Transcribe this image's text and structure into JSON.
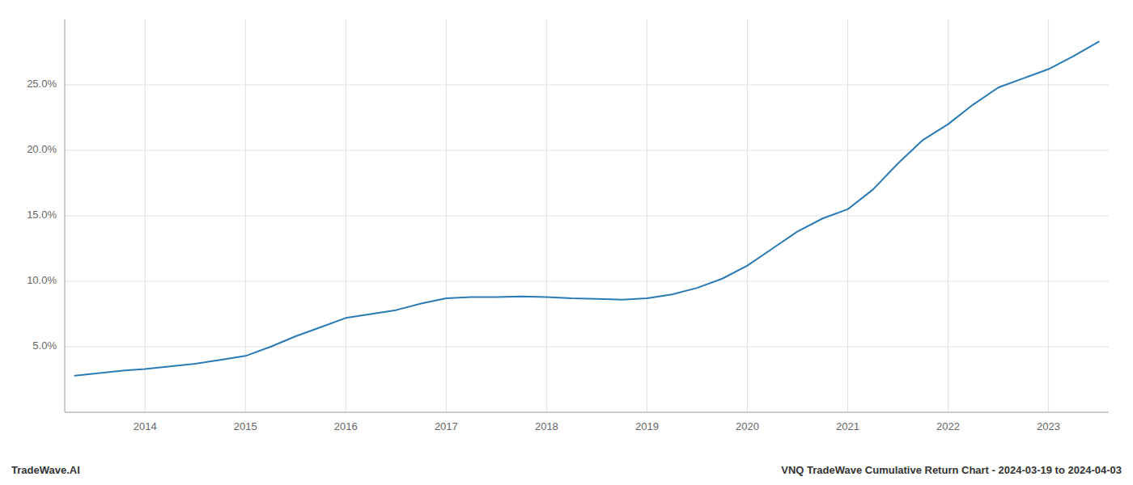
{
  "chart_data": {
    "type": "line",
    "title": "VNQ TradeWave Cumulative Return Chart - 2024-03-19 to 2024-04-03",
    "annotations": [
      "TradeWave.AI"
    ],
    "color": "#2a7ab5",
    "grid": true,
    "x": [
      2013.3,
      2013.55,
      2013.8,
      2014.0,
      2014.25,
      2014.5,
      2014.75,
      2015.0,
      2015.25,
      2015.5,
      2015.75,
      2016.0,
      2016.25,
      2016.5,
      2016.75,
      2017.0,
      2017.25,
      2017.5,
      2017.75,
      2018.0,
      2018.25,
      2018.5,
      2018.75,
      2019.0,
      2019.25,
      2019.5,
      2019.75,
      2020.0,
      2020.25,
      2020.5,
      2020.75,
      2021.0,
      2021.25,
      2021.5,
      2021.75,
      2022.0,
      2022.25,
      2022.5,
      2022.75,
      2023.0,
      2023.25,
      2023.5
    ],
    "values": [
      2.8,
      3.0,
      3.2,
      3.3,
      3.5,
      3.7,
      4.0,
      4.3,
      5.0,
      5.8,
      6.5,
      7.2,
      7.5,
      7.8,
      8.3,
      8.7,
      8.8,
      8.8,
      8.85,
      8.8,
      8.7,
      8.65,
      8.6,
      8.7,
      9.0,
      9.5,
      10.2,
      11.2,
      12.5,
      13.8,
      14.8,
      15.5,
      17.0,
      19.0,
      20.8,
      22.0,
      23.5,
      24.8,
      25.5,
      26.2,
      27.2,
      28.3
    ],
    "xlim": [
      2013.2,
      2023.6
    ],
    "xticks": [
      2014,
      2015,
      2016,
      2017,
      2018,
      2019,
      2020,
      2021,
      2022,
      2023
    ],
    "ylim": [
      0,
      30
    ],
    "yticks": [
      {
        "value": 5.0,
        "label": "5.0%"
      },
      {
        "value": 10.0,
        "label": "10.0%"
      },
      {
        "value": 15.0,
        "label": "15.0%"
      },
      {
        "value": 20.0,
        "label": "20.0%"
      },
      {
        "value": 25.0,
        "label": "25.0%"
      }
    ]
  }
}
